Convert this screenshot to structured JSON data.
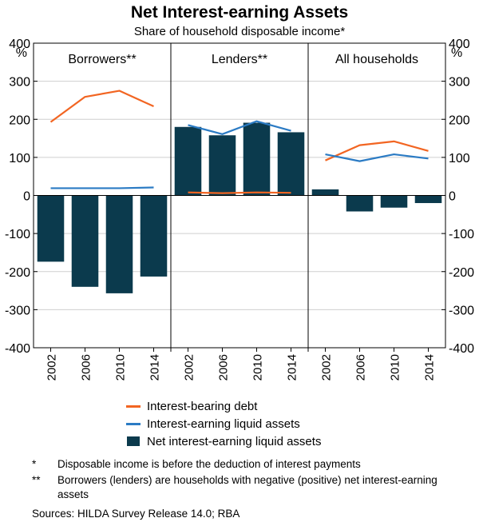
{
  "chart_data": {
    "type": "bar",
    "title": "Net Interest-earning Assets",
    "subtitle": "Share of household disposable income*",
    "yunit": "%",
    "ylim": [
      -400,
      400
    ],
    "yticks": [
      400,
      300,
      200,
      100,
      0,
      -100,
      -200,
      -300,
      -400
    ],
    "categories": [
      "2002",
      "2006",
      "2010",
      "2014"
    ],
    "panels": [
      {
        "title": "Borrowers**",
        "series": [
          {
            "name": "Interest-bearing debt",
            "type": "line",
            "color": "#f26522",
            "values": [
              193,
              259,
              275,
              234
            ]
          },
          {
            "name": "Interest-earning liquid assets",
            "type": "line",
            "color": "#2b7bc4",
            "values": [
              19,
              19,
              19,
              21
            ]
          },
          {
            "name": "Net interest-earning liquid assets",
            "type": "bar",
            "color": "#0b3a4d",
            "values": [
              -174,
              -240,
              -257,
              -213
            ]
          }
        ]
      },
      {
        "title": "Lenders**",
        "series": [
          {
            "name": "Interest-bearing debt",
            "type": "line",
            "color": "#f26522",
            "values": [
              8,
              6,
              8,
              7
            ]
          },
          {
            "name": "Interest-earning liquid assets",
            "type": "line",
            "color": "#2b7bc4",
            "values": [
              185,
              161,
              195,
              170
            ]
          },
          {
            "name": "Net interest-earning liquid assets",
            "type": "bar",
            "color": "#0b3a4d",
            "values": [
              180,
              158,
              191,
              166
            ]
          }
        ]
      },
      {
        "title": "All households",
        "series": [
          {
            "name": "Interest-bearing debt",
            "type": "line",
            "color": "#f26522",
            "values": [
              92,
              132,
              142,
              117
            ]
          },
          {
            "name": "Interest-earning liquid assets",
            "type": "line",
            "color": "#2b7bc4",
            "values": [
              108,
              90,
              108,
              97
            ]
          },
          {
            "name": "Net interest-earning liquid assets",
            "type": "bar",
            "color": "#0b3a4d",
            "values": [
              16,
              -42,
              -32,
              -20
            ]
          }
        ]
      }
    ],
    "legend": {
      "placement": "bottom",
      "items": [
        {
          "label": "Interest-bearing debt",
          "kind": "line",
          "color": "#f26522"
        },
        {
          "label": "Interest-earning liquid assets",
          "kind": "line",
          "color": "#2b7bc4"
        },
        {
          "label": "Net interest-earning liquid assets",
          "kind": "bar",
          "color": "#0b3a4d"
        }
      ]
    }
  },
  "notes": [
    {
      "mark": "*",
      "text": "Disposable income is before the deduction of interest payments"
    },
    {
      "mark": "**",
      "text": "Borrowers (lenders) are households with negative (positive) net interest-earning assets"
    }
  ],
  "sources": "Sources:  HILDA Survey Release 14.0; RBA"
}
